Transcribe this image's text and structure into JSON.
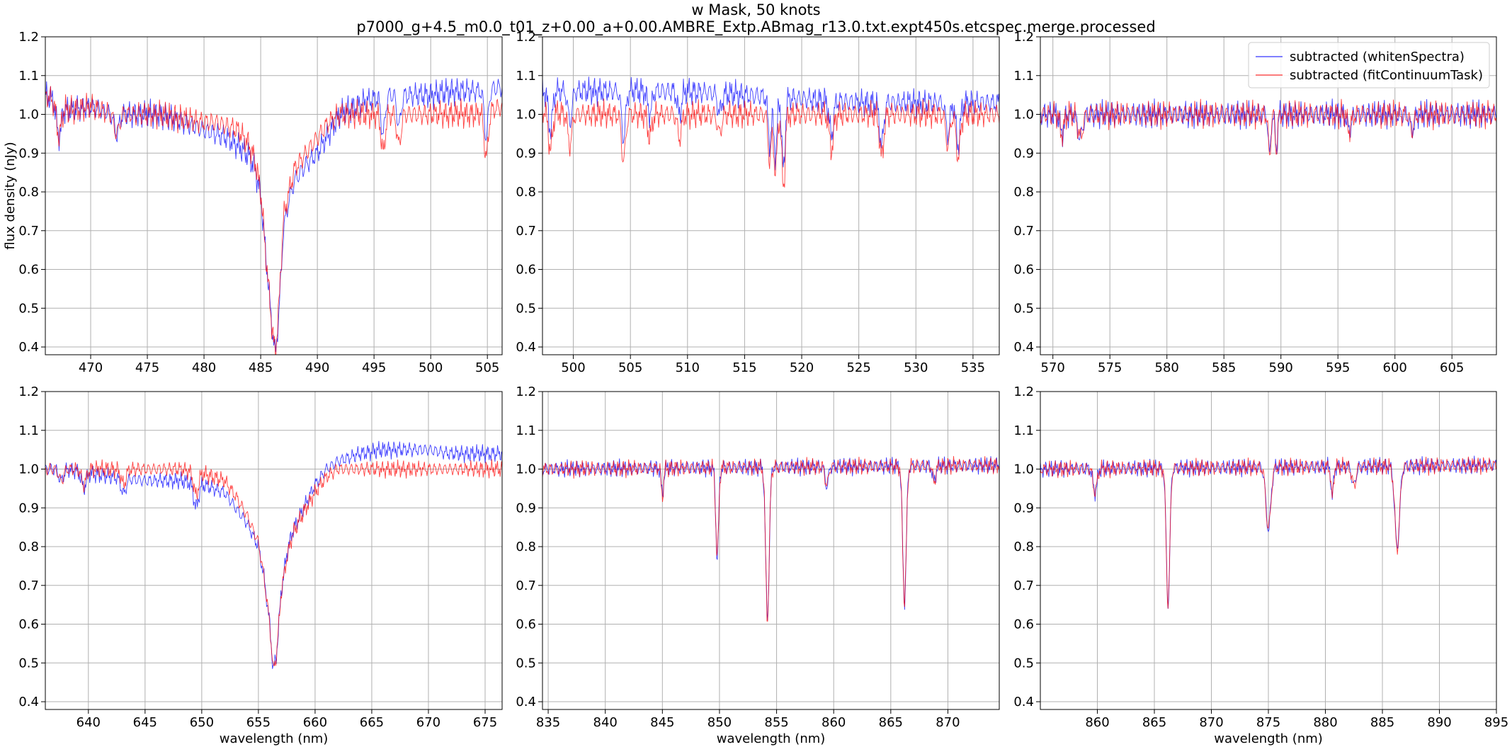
{
  "figure": {
    "title_line1": "w Mask, 50 knots",
    "title_line2": "p7000_g+4.5_m0.0_t01_z+0.00_a+0.00.AMBRE_Extp.ABmag_r13.0.txt.expt450s.etcspec.merge.processed"
  },
  "colors": {
    "whiten": "#0000ff",
    "fitcont": "#ff0000",
    "grid": "#b0b0b0"
  },
  "chart_data": [
    {
      "type": "line",
      "xlabel": "",
      "ylabel": "flux density (nJy)",
      "xlim": [
        466,
        506.3
      ],
      "ylim": [
        0.38,
        1.2
      ],
      "xticks": [
        470,
        475,
        480,
        485,
        490,
        495,
        500,
        505
      ],
      "yticks": [
        0.4,
        0.5,
        0.6,
        0.7,
        0.8,
        0.9,
        1.0,
        1.1,
        1.2
      ],
      "legend": null,
      "series": [
        {
          "name": "subtracted (whitenSpectra)",
          "color": "#0000ff",
          "x": [
            466,
            468,
            470,
            472,
            474,
            476,
            478,
            480,
            481,
            482,
            483,
            484,
            484.5,
            485,
            485.5,
            486,
            486.3,
            486.6,
            487,
            487.5,
            488,
            489,
            490,
            491,
            492,
            494,
            496,
            498,
            500,
            502,
            504,
            506.3
          ],
          "y": [
            1.05,
            1.01,
            1.02,
            1.0,
            1.0,
            1.0,
            0.98,
            0.96,
            0.95,
            0.94,
            0.92,
            0.89,
            0.86,
            0.79,
            0.62,
            0.45,
            0.38,
            0.48,
            0.7,
            0.78,
            0.83,
            0.87,
            0.9,
            0.95,
            1.0,
            1.03,
            1.05,
            1.05,
            1.05,
            1.06,
            1.06,
            1.07
          ]
        },
        {
          "name": "subtracted (fitContinuumTask)",
          "color": "#ff0000",
          "x": [
            466,
            468,
            470,
            472,
            474,
            476,
            478,
            480,
            481,
            482,
            483,
            484,
            484.5,
            485,
            485.5,
            486,
            486.3,
            486.6,
            487,
            487.5,
            488,
            489,
            490,
            491,
            492,
            494,
            496,
            498,
            500,
            502,
            504,
            506.3
          ],
          "y": [
            1.05,
            1.01,
            1.02,
            1.0,
            1.0,
            1.0,
            0.99,
            0.98,
            0.98,
            0.97,
            0.96,
            0.92,
            0.88,
            0.8,
            0.62,
            0.45,
            0.38,
            0.5,
            0.73,
            0.8,
            0.86,
            0.9,
            0.94,
            0.98,
            1.0,
            1.0,
            1.0,
            1.0,
            1.0,
            1.0,
            1.0,
            1.02
          ]
        }
      ],
      "absorption_lines": [
        {
          "x": 467.2,
          "depth": 0.08,
          "w": 0.3
        },
        {
          "x": 472.3,
          "depth": 0.05,
          "w": 0.3
        },
        {
          "x": 495.8,
          "depth": 0.1,
          "w": 0.25
        },
        {
          "x": 497.2,
          "depth": 0.08,
          "w": 0.25
        },
        {
          "x": 504.9,
          "depth": 0.12,
          "w": 0.25
        }
      ]
    },
    {
      "type": "line",
      "xlabel": "",
      "ylabel": "",
      "xlim": [
        497.3,
        537.3
      ],
      "ylim": [
        0.38,
        1.2
      ],
      "xticks": [
        500,
        505,
        510,
        515,
        520,
        525,
        530,
        535
      ],
      "yticks": [
        0.4,
        0.5,
        0.6,
        0.7,
        0.8,
        0.9,
        1.0,
        1.1,
        1.2
      ],
      "legend": null,
      "series": [
        {
          "name": "subtracted (whitenSpectra)",
          "color": "#0000ff",
          "x": [
            497.3,
            500,
            505,
            510,
            515,
            520,
            525,
            530,
            535,
            537.3
          ],
          "y": [
            1.06,
            1.06,
            1.06,
            1.06,
            1.05,
            1.04,
            1.03,
            1.03,
            1.03,
            1.03
          ]
        },
        {
          "name": "subtracted (fitContinuumTask)",
          "color": "#ff0000",
          "x": [
            497.3,
            500,
            505,
            510,
            515,
            520,
            525,
            530,
            535,
            537.3
          ],
          "y": [
            1.01,
            1.0,
            1.0,
            1.0,
            1.0,
            1.0,
            1.0,
            1.0,
            1.0,
            1.0
          ]
        }
      ],
      "absorption_lines": [
        {
          "x": 498.0,
          "depth": 0.1,
          "w": 0.25
        },
        {
          "x": 499.7,
          "depth": 0.08,
          "w": 0.25
        },
        {
          "x": 504.4,
          "depth": 0.12,
          "w": 0.25
        },
        {
          "x": 506.7,
          "depth": 0.06,
          "w": 0.25
        },
        {
          "x": 509.3,
          "depth": 0.06,
          "w": 0.25
        },
        {
          "x": 512.8,
          "depth": 0.05,
          "w": 0.25
        },
        {
          "x": 517.2,
          "depth": 0.12,
          "w": 0.2
        },
        {
          "x": 517.7,
          "depth": 0.15,
          "w": 0.2
        },
        {
          "x": 518.4,
          "depth": 0.19,
          "w": 0.2
        },
        {
          "x": 522.6,
          "depth": 0.09,
          "w": 0.25
        },
        {
          "x": 527.0,
          "depth": 0.11,
          "w": 0.25
        },
        {
          "x": 532.8,
          "depth": 0.08,
          "w": 0.25
        },
        {
          "x": 533.7,
          "depth": 0.11,
          "w": 0.25
        }
      ]
    },
    {
      "type": "line",
      "xlabel": "",
      "ylabel": "",
      "xlim": [
        568.9,
        608.9
      ],
      "ylim": [
        0.38,
        1.2
      ],
      "xticks": [
        570,
        575,
        580,
        585,
        590,
        595,
        600,
        605
      ],
      "yticks": [
        0.4,
        0.5,
        0.6,
        0.7,
        0.8,
        0.9,
        1.0,
        1.1,
        1.2
      ],
      "legend": {
        "placement": "upper right",
        "entries": [
          "subtracted (whitenSpectra)",
          "subtracted (fitContinuumTask)"
        ]
      },
      "series": [
        {
          "name": "subtracted (whitenSpectra)",
          "color": "#0000ff",
          "x": [
            568.9,
            608.9
          ],
          "y": [
            1.0,
            1.0
          ]
        },
        {
          "name": "subtracted (fitContinuumTask)",
          "color": "#ff0000",
          "x": [
            568.9,
            608.9
          ],
          "y": [
            1.0,
            1.0
          ]
        }
      ],
      "absorption_lines": [
        {
          "x": 570.8,
          "depth": 0.05,
          "w": 0.25
        },
        {
          "x": 572.4,
          "depth": 0.06,
          "w": 0.3
        },
        {
          "x": 589.0,
          "depth": 0.11,
          "w": 0.15
        },
        {
          "x": 589.6,
          "depth": 0.09,
          "w": 0.15
        },
        {
          "x": 596.0,
          "depth": 0.04,
          "w": 0.25
        },
        {
          "x": 601.5,
          "depth": 0.04,
          "w": 0.25
        }
      ]
    },
    {
      "type": "line",
      "xlabel": "wavelength (nm)",
      "ylabel": "",
      "xlim": [
        636.2,
        676.5
      ],
      "ylim": [
        0.38,
        1.2
      ],
      "xticks": [
        640,
        645,
        650,
        655,
        660,
        665,
        670,
        675
      ],
      "yticks": [
        0.4,
        0.5,
        0.6,
        0.7,
        0.8,
        0.9,
        1.0,
        1.1,
        1.2
      ],
      "legend": null,
      "series": [
        {
          "name": "subtracted (whitenSpectra)",
          "color": "#0000ff",
          "x": [
            636.2,
            638,
            640,
            642,
            645,
            648,
            650,
            652,
            653,
            654,
            655,
            655.5,
            656,
            656.3,
            656.6,
            657,
            657.5,
            658,
            659,
            660,
            661,
            662,
            664,
            666,
            668,
            670,
            672,
            674,
            676.5
          ],
          "y": [
            1.0,
            1.0,
            0.99,
            0.98,
            0.97,
            0.97,
            0.96,
            0.94,
            0.9,
            0.86,
            0.8,
            0.72,
            0.6,
            0.48,
            0.52,
            0.68,
            0.78,
            0.84,
            0.9,
            0.96,
            1.0,
            1.02,
            1.04,
            1.05,
            1.05,
            1.05,
            1.04,
            1.04,
            1.04
          ]
        },
        {
          "name": "subtracted (fitContinuumTask)",
          "color": "#ff0000",
          "x": [
            636.2,
            638,
            640,
            642,
            645,
            648,
            650,
            652,
            653,
            654,
            655,
            655.5,
            656,
            656.3,
            656.6,
            657,
            657.5,
            658,
            659,
            660,
            661,
            662,
            664,
            666,
            668,
            670,
            672,
            674,
            676.5
          ],
          "y": [
            1.0,
            1.0,
            1.0,
            1.0,
            1.0,
            1.0,
            0.99,
            0.97,
            0.93,
            0.88,
            0.81,
            0.72,
            0.6,
            0.48,
            0.52,
            0.68,
            0.77,
            0.83,
            0.89,
            0.94,
            0.98,
            1.0,
            1.0,
            1.0,
            1.0,
            1.0,
            1.0,
            1.0,
            1.0
          ]
        }
      ],
      "absorption_lines": [
        {
          "x": 637.6,
          "depth": 0.03,
          "w": 0.3
        },
        {
          "x": 639.6,
          "depth": 0.04,
          "w": 0.3
        },
        {
          "x": 643.1,
          "depth": 0.04,
          "w": 0.3
        },
        {
          "x": 649.5,
          "depth": 0.06,
          "w": 0.3
        }
      ]
    },
    {
      "type": "line",
      "xlabel": "wavelength (nm)",
      "ylabel": "",
      "xlim": [
        834.5,
        874.5
      ],
      "ylim": [
        0.38,
        1.2
      ],
      "xticks": [
        835,
        840,
        845,
        850,
        855,
        860,
        865,
        870
      ],
      "yticks": [
        0.4,
        0.5,
        0.6,
        0.7,
        0.8,
        0.9,
        1.0,
        1.1,
        1.2
      ],
      "legend": null,
      "series": [
        {
          "name": "subtracted (whitenSpectra)",
          "color": "#0000ff",
          "x": [
            834.5,
            874.5
          ],
          "y": [
            1.0,
            1.01
          ]
        },
        {
          "name": "subtracted (fitContinuumTask)",
          "color": "#ff0000",
          "x": [
            834.5,
            874.5
          ],
          "y": [
            1.0,
            1.01
          ]
        }
      ],
      "absorption_lines": [
        {
          "x": 845.0,
          "depth": 0.07,
          "w": 0.15
        },
        {
          "x": 849.8,
          "depth": 0.23,
          "w": 0.18
        },
        {
          "x": 854.2,
          "depth": 0.39,
          "w": 0.22
        },
        {
          "x": 859.4,
          "depth": 0.05,
          "w": 0.2
        },
        {
          "x": 866.2,
          "depth": 0.35,
          "w": 0.22
        },
        {
          "x": 868.8,
          "depth": 0.04,
          "w": 0.2
        }
      ]
    },
    {
      "type": "line",
      "xlabel": "wavelength (nm)",
      "ylabel": "",
      "xlim": [
        855,
        895
      ],
      "ylim": [
        0.38,
        1.2
      ],
      "xticks": [
        860,
        865,
        870,
        875,
        880,
        885,
        890,
        895
      ],
      "yticks": [
        0.4,
        0.5,
        0.6,
        0.7,
        0.8,
        0.9,
        1.0,
        1.1,
        1.2
      ],
      "legend": null,
      "series": [
        {
          "name": "subtracted (whitenSpectra)",
          "color": "#0000ff",
          "x": [
            855,
            895
          ],
          "y": [
            1.0,
            1.01
          ]
        },
        {
          "name": "subtracted (fitContinuumTask)",
          "color": "#ff0000",
          "x": [
            855,
            895
          ],
          "y": [
            1.0,
            1.01
          ]
        }
      ],
      "absorption_lines": [
        {
          "x": 859.8,
          "depth": 0.06,
          "w": 0.25
        },
        {
          "x": 866.2,
          "depth": 0.35,
          "w": 0.22
        },
        {
          "x": 875.0,
          "depth": 0.16,
          "w": 0.3
        },
        {
          "x": 880.6,
          "depth": 0.08,
          "w": 0.15
        },
        {
          "x": 886.3,
          "depth": 0.21,
          "w": 0.3
        },
        {
          "x": 882.5,
          "depth": 0.05,
          "w": 0.25
        }
      ]
    }
  ]
}
